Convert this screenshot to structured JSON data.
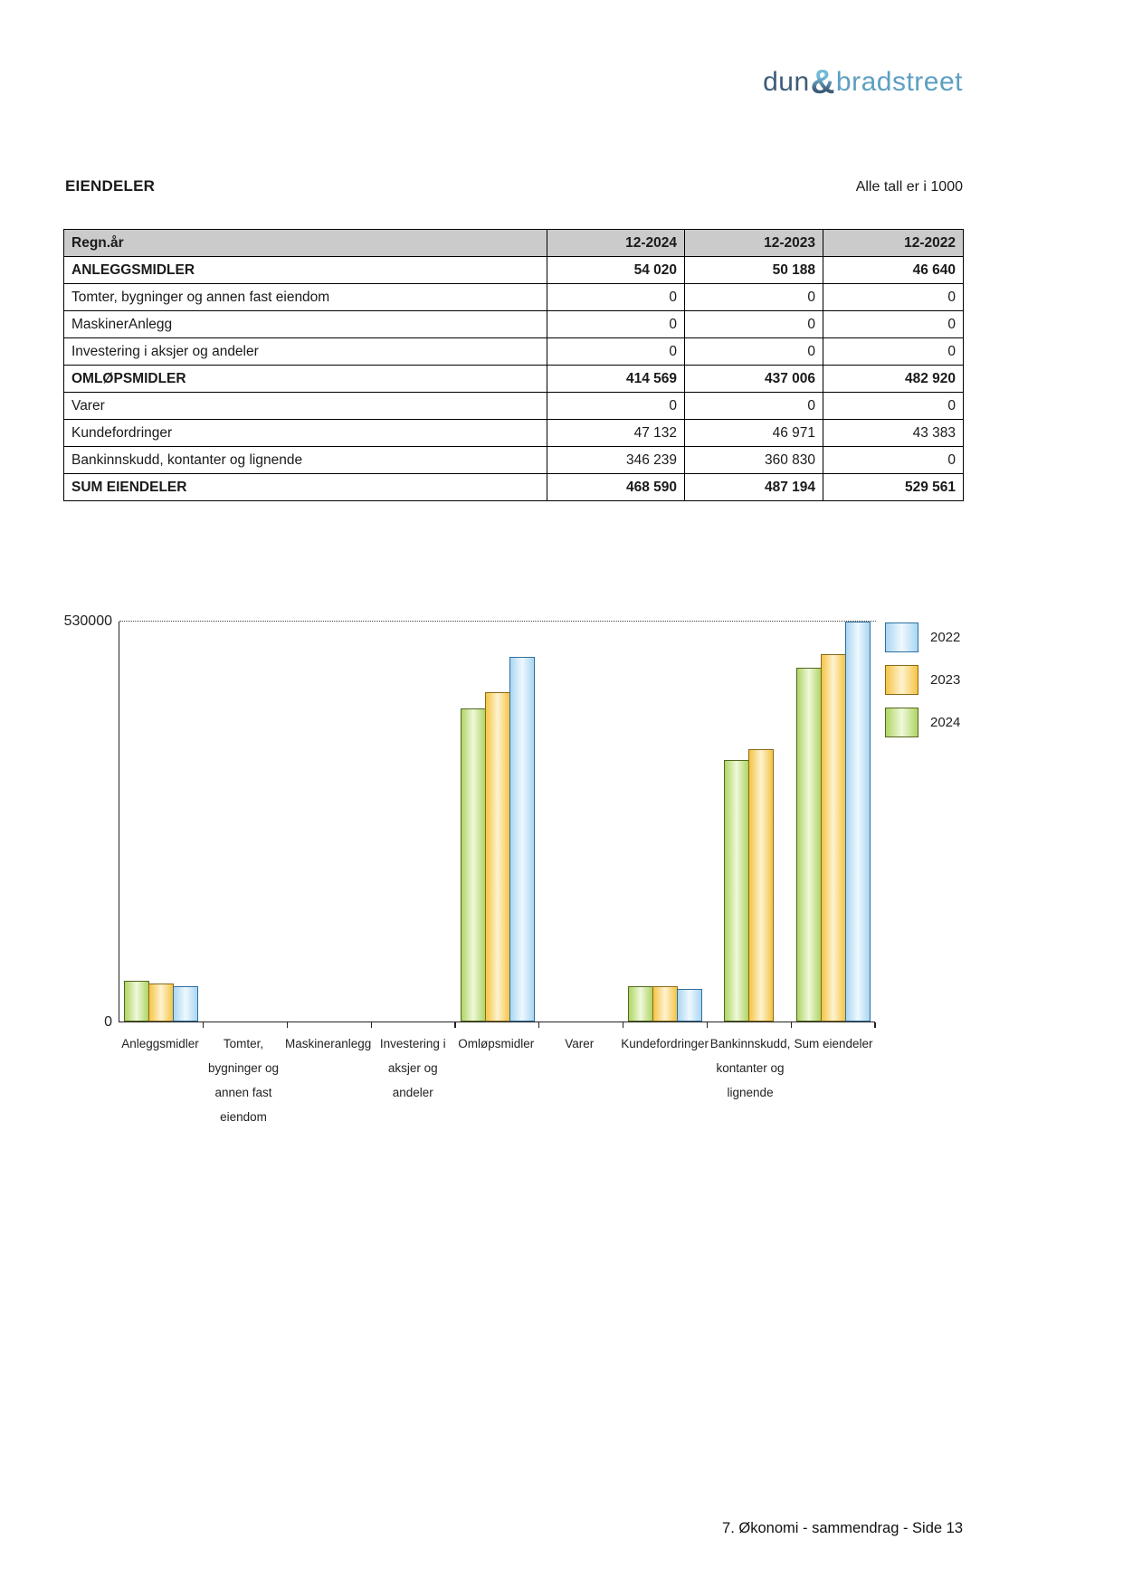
{
  "logo": {
    "part1": "dun",
    "amp": "&",
    "part2": "bradstreet",
    "color_dark": "#3d5c78",
    "color_light": "#5d9fc2",
    "amp_top": "#74bad8",
    "amp_bottom": "#3d5c78"
  },
  "section": {
    "title": "EIENDELER",
    "note": "Alle tall er i 1000"
  },
  "table": {
    "header": [
      "Regn.år",
      "12-2024",
      "12-2023",
      "12-2022"
    ],
    "rows": [
      {
        "label": "ANLEGGSMIDLER",
        "values": [
          "54 020",
          "50 188",
          "46 640"
        ],
        "bold": true
      },
      {
        "label": "Tomter, bygninger og annen fast eiendom",
        "values": [
          "0",
          "0",
          "0"
        ],
        "bold": false
      },
      {
        "label": "MaskinerAnlegg",
        "values": [
          "0",
          "0",
          "0"
        ],
        "bold": false
      },
      {
        "label": "Investering i aksjer og andeler",
        "values": [
          "0",
          "0",
          "0"
        ],
        "bold": false
      },
      {
        "label": "OMLØPSMIDLER",
        "values": [
          "414 569",
          "437 006",
          "482 920"
        ],
        "bold": true
      },
      {
        "label": "Varer",
        "values": [
          "0",
          "0",
          "0"
        ],
        "bold": false
      },
      {
        "label": "Kundefordringer",
        "values": [
          "47 132",
          "46 971",
          "43 383"
        ],
        "bold": false
      },
      {
        "label": "Bankinnskudd, kontanter og lignende",
        "values": [
          "346 239",
          "360 830",
          "0"
        ],
        "bold": false
      },
      {
        "label": "SUM EIENDELER",
        "values": [
          "468 590",
          "487 194",
          "529 561"
        ],
        "bold": true
      }
    ]
  },
  "chart_data": {
    "type": "bar",
    "title": "",
    "xlabel": "",
    "ylabel": "",
    "ylim": [
      0,
      530000
    ],
    "ytick_labels": {
      "max": "530000",
      "zero": "0"
    },
    "gridline_at": 530000,
    "grid": "top-dotted-only",
    "legend_position": "top-right",
    "categories": [
      "Anleggsmidler",
      "Tomter, bygninger og annen fast eiendom",
      "Maskineranlegg",
      "Investering i aksjer og andeler",
      "Omløpsmidler",
      "Varer",
      "Kundefordringer",
      "Bankinnskudd, kontanter og lignende",
      "Sum eiendeler"
    ],
    "category_label_lines": [
      [
        "Anleggsmidler"
      ],
      [
        "Tomter,",
        "bygninger og",
        "annen fast",
        "eiendom"
      ],
      [
        "Maskineranlegg"
      ],
      [
        "Investering i",
        "aksjer og",
        "andeler"
      ],
      [
        "Omløpsmidler"
      ],
      [
        "Varer"
      ],
      [
        "Kundefordringer"
      ],
      [
        "Bankinnskudd,",
        "kontanter og",
        "lignende"
      ],
      [
        "Sum eiendeler"
      ]
    ],
    "series": [
      {
        "name": "2024",
        "values": [
          54020,
          0,
          0,
          0,
          414569,
          0,
          47132,
          346239,
          468590
        ],
        "color_edge": "#aed565",
        "color_center": "#f0f8da",
        "color_border": "#55661d"
      },
      {
        "name": "2023",
        "values": [
          50188,
          0,
          0,
          0,
          437006,
          0,
          46971,
          360830,
          487194
        ],
        "color_edge": "#f6c445",
        "color_center": "#fdf3d0",
        "color_border": "#8a6a18"
      },
      {
        "name": "2022",
        "values": [
          46640,
          0,
          0,
          0,
          482920,
          0,
          43383,
          0,
          529561
        ],
        "color_edge": "#a9d6f2",
        "color_center": "#eff8fe",
        "color_border": "#2f6e9e"
      }
    ],
    "bar_draw_order": [
      "2024",
      "2023",
      "2022"
    ],
    "legend_order": [
      "2022",
      "2023",
      "2024"
    ]
  },
  "footer": {
    "text": "7. Økonomi - sammendrag - Side 13"
  }
}
